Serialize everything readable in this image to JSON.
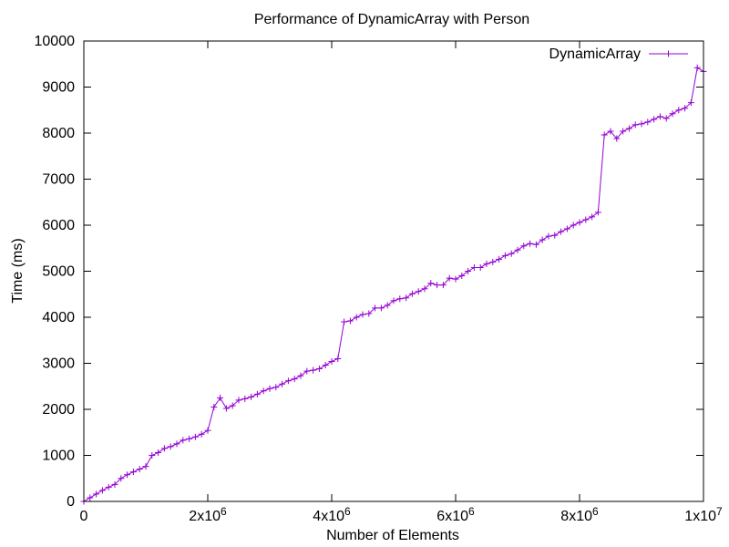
{
  "chart_data": {
    "type": "line",
    "title": "Performance of DynamicArray with Person",
    "xlabel": "Number of Elements",
    "ylabel": "Time (ms)",
    "xlim": [
      0,
      10000000
    ],
    "ylim": [
      0,
      10000
    ],
    "xticks": [
      {
        "value": 0,
        "base": "0",
        "sup": ""
      },
      {
        "value": 2000000,
        "base": "2x10",
        "sup": "6"
      },
      {
        "value": 4000000,
        "base": "4x10",
        "sup": "6"
      },
      {
        "value": 6000000,
        "base": "6x10",
        "sup": "6"
      },
      {
        "value": 8000000,
        "base": "8x10",
        "sup": "6"
      },
      {
        "value": 10000000,
        "base": "1x10",
        "sup": "7"
      }
    ],
    "yticks": [
      {
        "value": 0,
        "label": "0"
      },
      {
        "value": 1000,
        "label": "1000"
      },
      {
        "value": 2000,
        "label": "2000"
      },
      {
        "value": 3000,
        "label": "3000"
      },
      {
        "value": 4000,
        "label": "4000"
      },
      {
        "value": 5000,
        "label": "5000"
      },
      {
        "value": 6000,
        "label": "6000"
      },
      {
        "value": 7000,
        "label": "7000"
      },
      {
        "value": 8000,
        "label": "8000"
      },
      {
        "value": 9000,
        "label": "9000"
      },
      {
        "value": 10000,
        "label": "10000"
      }
    ],
    "grid": false,
    "legend_position": "top-right",
    "marker": "plus",
    "series": [
      {
        "name": "DynamicArray",
        "color": "#9400d3",
        "x": [
          0,
          100000,
          200000,
          300000,
          400000,
          500000,
          600000,
          700000,
          800000,
          900000,
          1000000,
          1100000,
          1200000,
          1300000,
          1400000,
          1500000,
          1600000,
          1700000,
          1800000,
          1900000,
          2000000,
          2100000,
          2200000,
          2300000,
          2400000,
          2500000,
          2600000,
          2700000,
          2800000,
          2900000,
          3000000,
          3100000,
          3200000,
          3300000,
          3400000,
          3500000,
          3600000,
          3700000,
          3800000,
          3900000,
          4000000,
          4100000,
          4200000,
          4300000,
          4400000,
          4500000,
          4600000,
          4700000,
          4800000,
          4900000,
          5000000,
          5100000,
          5200000,
          5300000,
          5400000,
          5500000,
          5600000,
          5700000,
          5800000,
          5900000,
          6000000,
          6100000,
          6200000,
          6300000,
          6400000,
          6500000,
          6600000,
          6700000,
          6800000,
          6900000,
          7000000,
          7100000,
          7200000,
          7300000,
          7400000,
          7500000,
          7600000,
          7700000,
          7800000,
          7900000,
          8000000,
          8100000,
          8200000,
          8300000,
          8400000,
          8500000,
          8600000,
          8700000,
          8800000,
          8900000,
          9000000,
          9100000,
          9200000,
          9300000,
          9400000,
          9500000,
          9600000,
          9700000,
          9800000,
          9900000,
          10000000
        ],
        "y": [
          0,
          80,
          160,
          240,
          310,
          370,
          500,
          580,
          640,
          700,
          760,
          1000,
          1060,
          1150,
          1190,
          1250,
          1330,
          1360,
          1400,
          1460,
          1540,
          2050,
          2250,
          2020,
          2080,
          2200,
          2230,
          2270,
          2330,
          2400,
          2450,
          2480,
          2550,
          2620,
          2660,
          2730,
          2830,
          2850,
          2880,
          2960,
          3040,
          3100,
          3900,
          3920,
          4000,
          4060,
          4080,
          4200,
          4200,
          4260,
          4360,
          4400,
          4420,
          4510,
          4560,
          4620,
          4740,
          4700,
          4700,
          4850,
          4830,
          4900,
          5000,
          5080,
          5080,
          5160,
          5200,
          5260,
          5340,
          5380,
          5460,
          5550,
          5600,
          5580,
          5680,
          5760,
          5780,
          5860,
          5920,
          6000,
          6060,
          6120,
          6180,
          6280,
          7960,
          8040,
          7880,
          8040,
          8100,
          8180,
          8200,
          8240,
          8300,
          8360,
          8320,
          8420,
          8500,
          8540,
          8660,
          9420,
          9340
        ]
      }
    ]
  }
}
